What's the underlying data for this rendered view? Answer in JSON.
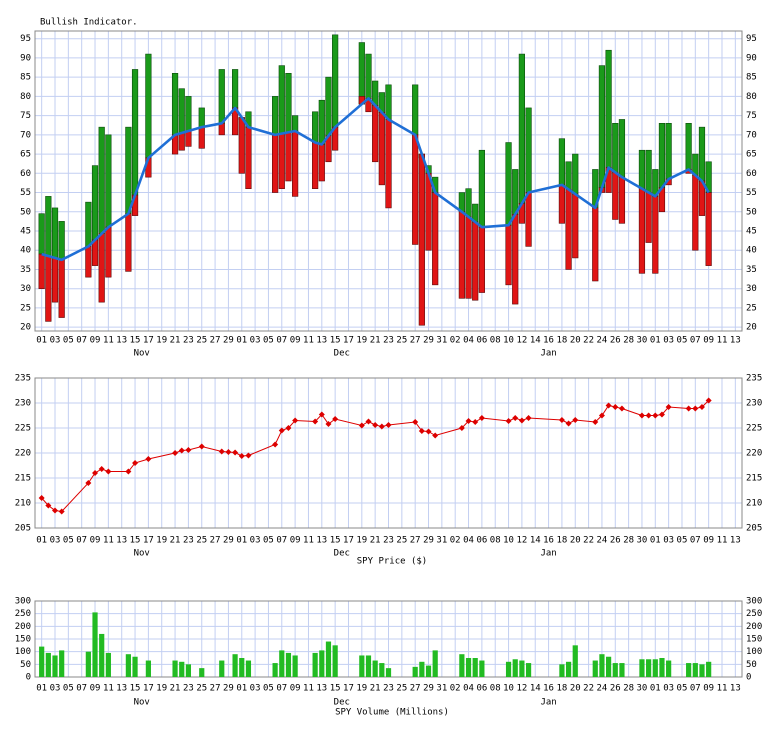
{
  "chart_data": [
    {
      "type": "range-bar",
      "title": "Bullish Indicator.",
      "x": [
        0,
        1,
        2,
        3,
        7,
        8,
        9,
        10,
        13,
        14,
        16,
        20,
        21,
        22,
        24,
        27,
        29,
        30,
        31,
        35,
        36,
        37,
        38,
        41,
        42,
        43,
        44,
        48,
        49,
        50,
        51,
        52,
        56,
        57,
        58,
        59,
        63,
        64,
        65,
        66,
        70,
        71,
        72,
        73,
        78,
        79,
        80,
        83,
        84,
        85,
        86,
        87,
        90,
        91,
        92,
        93,
        94,
        97,
        98,
        99,
        100
      ],
      "series": [
        {
          "color": "#1a9a1a",
          "values": [
            49.5,
            54,
            51,
            47.5,
            52.5,
            62,
            72,
            70,
            72,
            87,
            91,
            86,
            82,
            80,
            77,
            87,
            87,
            74,
            76,
            80,
            88,
            86,
            75,
            76,
            79,
            85,
            96,
            94,
            91,
            84,
            81,
            83,
            83,
            64,
            62,
            59,
            55,
            56,
            52,
            66,
            68,
            61,
            91,
            77,
            69,
            63,
            65,
            61,
            88,
            92,
            73,
            74,
            66,
            66,
            61,
            73,
            73,
            73,
            65,
            72,
            63
          ]
        },
        {
          "color": "#e01515",
          "values": [
            30,
            21.5,
            26.5,
            22.5,
            33,
            36,
            26.5,
            33,
            34.5,
            49,
            59,
            65,
            66,
            67,
            66.5,
            70,
            70,
            60,
            56,
            55,
            56,
            58,
            54,
            56,
            58,
            63,
            66,
            80,
            76,
            63,
            57,
            51,
            41.5,
            20.5,
            40,
            31,
            27.5,
            27.5,
            27,
            29,
            31,
            26,
            47,
            41,
            47,
            35,
            38,
            32,
            55,
            55,
            48,
            47,
            34,
            42,
            34,
            50,
            57,
            60,
            40,
            49,
            36
          ]
        }
      ],
      "line": {
        "color": "#1f6fd6",
        "x": [
          0,
          3,
          7,
          10,
          13,
          16,
          20,
          24,
          27,
          29,
          31,
          35,
          38,
          41,
          42,
          44,
          49,
          52,
          56,
          59,
          63,
          66,
          70,
          73,
          78,
          83,
          85,
          87,
          92,
          94,
          97,
          99,
          100
        ],
        "values": [
          39,
          37.5,
          41,
          46,
          49.5,
          64,
          70,
          72,
          73,
          77,
          72,
          70,
          71,
          68,
          67.5,
          72,
          79.5,
          74,
          70,
          55,
          50,
          46,
          46.5,
          55,
          57,
          51,
          61.5,
          59,
          54,
          58.5,
          61,
          58,
          55
        ]
      },
      "xlim": [
        -1,
        105
      ],
      "ylim": [
        19,
        97
      ],
      "yticks": [
        20,
        25,
        30,
        35,
        40,
        45,
        50,
        55,
        60,
        65,
        70,
        75,
        80,
        85,
        90,
        95
      ],
      "xticks": [
        {
          "value": 0,
          "label": "01"
        },
        {
          "value": 2,
          "label": "03"
        },
        {
          "value": 4,
          "label": "05"
        },
        {
          "value": 6,
          "label": "07"
        },
        {
          "value": 8,
          "label": "09"
        },
        {
          "value": 10,
          "label": "11"
        },
        {
          "value": 12,
          "label": "13"
        },
        {
          "value": 14,
          "label": "15"
        },
        {
          "value": 16,
          "label": "17"
        },
        {
          "value": 18,
          "label": "19"
        },
        {
          "value": 20,
          "label": "21"
        },
        {
          "value": 22,
          "label": "23"
        },
        {
          "value": 24,
          "label": "25"
        },
        {
          "value": 26,
          "label": "27"
        },
        {
          "value": 28,
          "label": "29"
        },
        {
          "value": 30,
          "label": "01"
        },
        {
          "value": 32,
          "label": "03"
        },
        {
          "value": 34,
          "label": "05"
        },
        {
          "value": 36,
          "label": "07"
        },
        {
          "value": 38,
          "label": "09"
        },
        {
          "value": 40,
          "label": "11"
        },
        {
          "value": 42,
          "label": "13"
        },
        {
          "value": 44,
          "label": "15"
        },
        {
          "value": 46,
          "label": "17"
        },
        {
          "value": 48,
          "label": "19"
        },
        {
          "value": 50,
          "label": "21"
        },
        {
          "value": 52,
          "label": "23"
        },
        {
          "value": 54,
          "label": "25"
        },
        {
          "value": 56,
          "label": "27"
        },
        {
          "value": 58,
          "label": "29"
        },
        {
          "value": 60,
          "label": "31"
        },
        {
          "value": 62,
          "label": "02"
        },
        {
          "value": 64,
          "label": "04"
        },
        {
          "value": 66,
          "label": "06"
        },
        {
          "value": 68,
          "label": "08"
        },
        {
          "value": 70,
          "label": "10"
        },
        {
          "value": 72,
          "label": "12"
        },
        {
          "value": 74,
          "label": "14"
        },
        {
          "value": 76,
          "label": "16"
        },
        {
          "value": 78,
          "label": "18"
        },
        {
          "value": 80,
          "label": "20"
        },
        {
          "value": 82,
          "label": "22"
        },
        {
          "value": 84,
          "label": "24"
        },
        {
          "value": 86,
          "label": "26"
        },
        {
          "value": 88,
          "label": "28"
        },
        {
          "value": 90,
          "label": "30"
        },
        {
          "value": 92,
          "label": "01"
        },
        {
          "value": 94,
          "label": "03"
        },
        {
          "value": 96,
          "label": "05"
        },
        {
          "value": 98,
          "label": "07"
        },
        {
          "value": 100,
          "label": "09"
        },
        {
          "value": 102,
          "label": "11"
        },
        {
          "value": 104,
          "label": "13"
        }
      ],
      "month_labels": [
        {
          "value": 15,
          "label": "Nov"
        },
        {
          "value": 45,
          "label": "Dec"
        },
        {
          "value": 76,
          "label": "Jan"
        }
      ],
      "grid": true
    },
    {
      "type": "line",
      "title": "SPY Price ($)",
      "color": "#dd0000",
      "x": [
        0,
        1,
        2,
        3,
        7,
        8,
        9,
        10,
        13,
        14,
        16,
        20,
        21,
        22,
        24,
        27,
        28,
        29,
        30,
        31,
        35,
        36,
        37,
        38,
        41,
        42,
        43,
        44,
        48,
        49,
        50,
        51,
        52,
        56,
        57,
        58,
        59,
        63,
        64,
        65,
        66,
        70,
        71,
        72,
        73,
        78,
        79,
        80,
        83,
        84,
        85,
        86,
        87,
        90,
        91,
        92,
        93,
        94,
        97,
        98,
        99,
        100
      ],
      "values": [
        211,
        209.5,
        208.5,
        208.3,
        214,
        216,
        216.8,
        216.3,
        216.3,
        218,
        218.8,
        220,
        220.5,
        220.6,
        221.3,
        220.3,
        220.2,
        220.1,
        219.4,
        219.5,
        221.7,
        224.5,
        225,
        226.5,
        226.3,
        227.7,
        225.8,
        226.8,
        225.5,
        226.3,
        225.6,
        225.3,
        225.6,
        226.2,
        224.4,
        224.3,
        223.5,
        225,
        226.4,
        226.2,
        227,
        226.4,
        227,
        226.5,
        227,
        226.6,
        225.9,
        226.6,
        226.2,
        227.5,
        229.5,
        229.2,
        228.9,
        227.5,
        227.5,
        227.5,
        227.7,
        229.2,
        228.9,
        228.9,
        229.2,
        230.5
      ],
      "xlim": [
        -1,
        105
      ],
      "ylim": [
        205,
        235
      ],
      "yticks": [
        205,
        210,
        215,
        220,
        225,
        230,
        235
      ],
      "xticks": [
        {
          "value": 0,
          "label": "01"
        },
        {
          "value": 2,
          "label": "03"
        },
        {
          "value": 4,
          "label": "05"
        },
        {
          "value": 6,
          "label": "07"
        },
        {
          "value": 8,
          "label": "09"
        },
        {
          "value": 10,
          "label": "11"
        },
        {
          "value": 12,
          "label": "13"
        },
        {
          "value": 14,
          "label": "15"
        },
        {
          "value": 16,
          "label": "17"
        },
        {
          "value": 18,
          "label": "19"
        },
        {
          "value": 20,
          "label": "21"
        },
        {
          "value": 22,
          "label": "23"
        },
        {
          "value": 24,
          "label": "25"
        },
        {
          "value": 26,
          "label": "27"
        },
        {
          "value": 28,
          "label": "29"
        },
        {
          "value": 30,
          "label": "01"
        },
        {
          "value": 32,
          "label": "03"
        },
        {
          "value": 34,
          "label": "05"
        },
        {
          "value": 36,
          "label": "07"
        },
        {
          "value": 38,
          "label": "09"
        },
        {
          "value": 40,
          "label": "11"
        },
        {
          "value": 42,
          "label": "13"
        },
        {
          "value": 44,
          "label": "15"
        },
        {
          "value": 46,
          "label": "17"
        },
        {
          "value": 48,
          "label": "19"
        },
        {
          "value": 50,
          "label": "21"
        },
        {
          "value": 52,
          "label": "23"
        },
        {
          "value": 54,
          "label": "25"
        },
        {
          "value": 56,
          "label": "27"
        },
        {
          "value": 58,
          "label": "29"
        },
        {
          "value": 60,
          "label": "31"
        },
        {
          "value": 62,
          "label": "02"
        },
        {
          "value": 64,
          "label": "04"
        },
        {
          "value": 66,
          "label": "06"
        },
        {
          "value": 68,
          "label": "08"
        },
        {
          "value": 70,
          "label": "10"
        },
        {
          "value": 72,
          "label": "12"
        },
        {
          "value": 74,
          "label": "14"
        },
        {
          "value": 76,
          "label": "16"
        },
        {
          "value": 78,
          "label": "18"
        },
        {
          "value": 80,
          "label": "20"
        },
        {
          "value": 82,
          "label": "22"
        },
        {
          "value": 84,
          "label": "24"
        },
        {
          "value": 86,
          "label": "26"
        },
        {
          "value": 88,
          "label": "28"
        },
        {
          "value": 90,
          "label": "30"
        },
        {
          "value": 92,
          "label": "01"
        },
        {
          "value": 94,
          "label": "03"
        },
        {
          "value": 96,
          "label": "05"
        },
        {
          "value": 98,
          "label": "07"
        },
        {
          "value": 100,
          "label": "09"
        },
        {
          "value": 102,
          "label": "11"
        },
        {
          "value": 104,
          "label": "13"
        }
      ],
      "month_labels": [
        {
          "value": 15,
          "label": "Nov"
        },
        {
          "value": 45,
          "label": "Dec"
        },
        {
          "value": 76,
          "label": "Jan"
        }
      ],
      "grid": true
    },
    {
      "type": "bar",
      "title": "SPY Volume (Millions)",
      "color": "#22bb22",
      "x": [
        0,
        1,
        2,
        3,
        7,
        8,
        9,
        10,
        13,
        14,
        16,
        20,
        21,
        22,
        24,
        27,
        29,
        30,
        31,
        35,
        36,
        37,
        38,
        41,
        42,
        43,
        44,
        48,
        49,
        50,
        51,
        52,
        56,
        57,
        58,
        59,
        63,
        64,
        65,
        66,
        70,
        71,
        72,
        73,
        78,
        79,
        80,
        83,
        84,
        85,
        86,
        87,
        90,
        91,
        92,
        93,
        94,
        97,
        98,
        99,
        100
      ],
      "values": [
        120,
        95,
        85,
        105,
        100,
        255,
        170,
        95,
        90,
        80,
        65,
        65,
        60,
        50,
        35,
        65,
        90,
        75,
        65,
        55,
        105,
        95,
        85,
        95,
        105,
        140,
        125,
        85,
        85,
        65,
        55,
        35,
        40,
        60,
        45,
        105,
        90,
        75,
        75,
        65,
        60,
        70,
        65,
        55,
        50,
        60,
        125,
        65,
        90,
        80,
        55,
        55,
        70,
        70,
        70,
        75,
        65,
        55,
        55,
        50,
        60
      ],
      "xlim": [
        -1,
        105
      ],
      "ylim": [
        0,
        300
      ],
      "yticks": [
        0,
        50,
        100,
        150,
        200,
        250,
        300
      ],
      "xticks": [
        {
          "value": 0,
          "label": "01"
        },
        {
          "value": 2,
          "label": "03"
        },
        {
          "value": 4,
          "label": "05"
        },
        {
          "value": 6,
          "label": "07"
        },
        {
          "value": 8,
          "label": "09"
        },
        {
          "value": 10,
          "label": "11"
        },
        {
          "value": 12,
          "label": "13"
        },
        {
          "value": 14,
          "label": "15"
        },
        {
          "value": 16,
          "label": "17"
        },
        {
          "value": 18,
          "label": "19"
        },
        {
          "value": 20,
          "label": "21"
        },
        {
          "value": 22,
          "label": "23"
        },
        {
          "value": 24,
          "label": "25"
        },
        {
          "value": 26,
          "label": "27"
        },
        {
          "value": 28,
          "label": "29"
        },
        {
          "value": 30,
          "label": "01"
        },
        {
          "value": 32,
          "label": "03"
        },
        {
          "value": 34,
          "label": "05"
        },
        {
          "value": 36,
          "label": "07"
        },
        {
          "value": 38,
          "label": "09"
        },
        {
          "value": 40,
          "label": "11"
        },
        {
          "value": 42,
          "label": "13"
        },
        {
          "value": 44,
          "label": "15"
        },
        {
          "value": 46,
          "label": "17"
        },
        {
          "value": 48,
          "label": "19"
        },
        {
          "value": 50,
          "label": "21"
        },
        {
          "value": 52,
          "label": "23"
        },
        {
          "value": 54,
          "label": "25"
        },
        {
          "value": 56,
          "label": "27"
        },
        {
          "value": 58,
          "label": "29"
        },
        {
          "value": 60,
          "label": "31"
        },
        {
          "value": 62,
          "label": "02"
        },
        {
          "value": 64,
          "label": "04"
        },
        {
          "value": 66,
          "label": "06"
        },
        {
          "value": 68,
          "label": "08"
        },
        {
          "value": 70,
          "label": "10"
        },
        {
          "value": 72,
          "label": "12"
        },
        {
          "value": 74,
          "label": "14"
        },
        {
          "value": 76,
          "label": "16"
        },
        {
          "value": 78,
          "label": "18"
        },
        {
          "value": 80,
          "label": "20"
        },
        {
          "value": 82,
          "label": "22"
        },
        {
          "value": 84,
          "label": "24"
        },
        {
          "value": 86,
          "label": "26"
        },
        {
          "value": 88,
          "label": "28"
        },
        {
          "value": 90,
          "label": "30"
        },
        {
          "value": 92,
          "label": "01"
        },
        {
          "value": 94,
          "label": "03"
        },
        {
          "value": 96,
          "label": "05"
        },
        {
          "value": 98,
          "label": "07"
        },
        {
          "value": 100,
          "label": "09"
        },
        {
          "value": 102,
          "label": "11"
        },
        {
          "value": 104,
          "label": "13"
        }
      ],
      "month_labels": [
        {
          "value": 15,
          "label": "Nov"
        },
        {
          "value": 45,
          "label": "Dec"
        },
        {
          "value": 76,
          "label": "Jan"
        }
      ],
      "grid": true
    }
  ]
}
